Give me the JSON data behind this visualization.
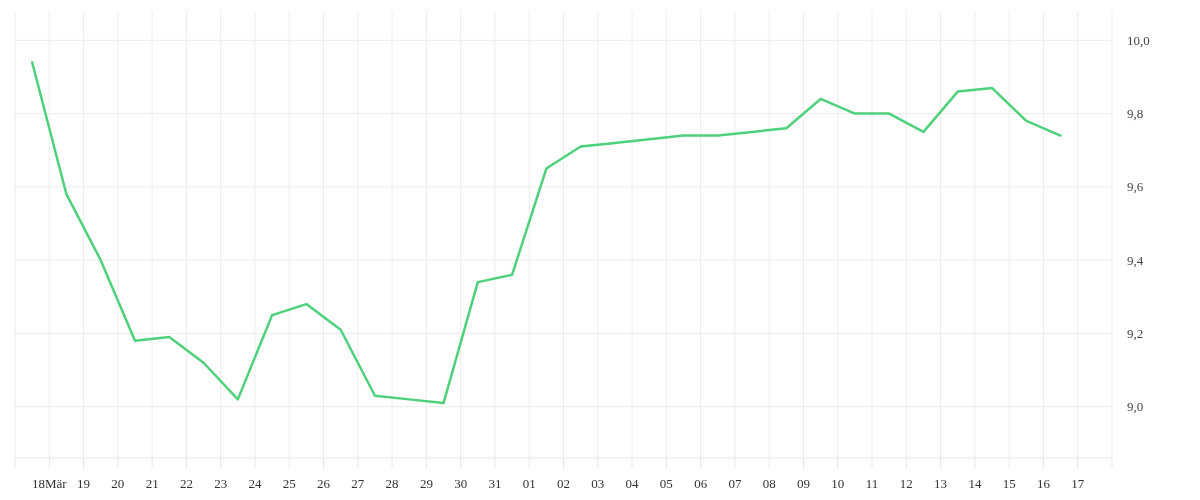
{
  "chart_data": {
    "type": "line",
    "x": [
      "--03-17T12:00",
      "--03-18T12:00",
      "--03-19T12:00",
      "--03-20T12:00",
      "--03-21T12:00",
      "--03-22T12:00",
      "--03-23T12:00",
      "--03-24T12:00",
      "--03-25T12:00",
      "--03-26T12:00",
      "--03-27T12:00",
      "--03-28T12:00",
      "--03-29T12:00",
      "--03-30T12:00",
      "--03-31T12:00",
      "--04-01T12:00",
      "--04-02T12:00",
      "--04-03T12:00",
      "--04-04T12:00",
      "--04-05T12:00",
      "--04-06T12:00",
      "--04-07T12:00",
      "--04-08T12:00",
      "--04-09T12:00",
      "--04-10T12:00",
      "--04-11T12:00",
      "--04-12T12:00",
      "--04-13T12:00",
      "--04-14T12:00",
      "--04-15T12:00",
      "--04-16T12:00"
    ],
    "series": [
      {
        "color": "#4ed17a",
        "values": [
          9.94,
          9.58,
          9.4,
          9.18,
          9.19,
          9.12,
          9.02,
          9.25,
          9.28,
          9.21,
          9.03,
          9.02,
          9.01,
          9.34,
          9.36,
          9.65,
          9.71,
          9.72,
          9.73,
          9.74,
          9.74,
          9.75,
          9.76,
          9.84,
          9.8,
          9.8,
          9.75,
          9.86,
          9.87,
          9.78,
          9.74
        ]
      }
    ],
    "xlim": [
      "--03-17",
      "--04-18"
    ],
    "xticks": [
      {
        "value": "--03-17",
        "label": null
      },
      {
        "value": "--03-18",
        "label": "18Mär"
      },
      {
        "value": "--03-19",
        "label": "19"
      },
      {
        "value": "--03-20",
        "label": "20"
      },
      {
        "value": "--03-21",
        "label": "21"
      },
      {
        "value": "--03-22",
        "label": "22"
      },
      {
        "value": "--03-23",
        "label": "23"
      },
      {
        "value": "--03-24",
        "label": "24"
      },
      {
        "value": "--03-25",
        "label": "25"
      },
      {
        "value": "--03-26",
        "label": "26"
      },
      {
        "value": "--03-27",
        "label": "27"
      },
      {
        "value": "--03-28",
        "label": "28"
      },
      {
        "value": "--03-29",
        "label": "29"
      },
      {
        "value": "--03-30",
        "label": "30"
      },
      {
        "value": "--03-31",
        "label": "31"
      },
      {
        "value": "--04-01",
        "label": "01"
      },
      {
        "value": "--04-02",
        "label": "02"
      },
      {
        "value": "--04-03",
        "label": "03"
      },
      {
        "value": "--04-04",
        "label": "04"
      },
      {
        "value": "--04-05",
        "label": "05"
      },
      {
        "value": "--04-06",
        "label": "06"
      },
      {
        "value": "--04-07",
        "label": "07"
      },
      {
        "value": "--04-08",
        "label": "08"
      },
      {
        "value": "--04-09",
        "label": "09"
      },
      {
        "value": "--04-10",
        "label": "10"
      },
      {
        "value": "--04-11",
        "label": "11"
      },
      {
        "value": "--04-12",
        "label": "12"
      },
      {
        "value": "--04-13",
        "label": "13"
      },
      {
        "value": "--04-14",
        "label": "14"
      },
      {
        "value": "--04-15",
        "label": "15"
      },
      {
        "value": "--04-16",
        "label": "16"
      },
      {
        "value": "--04-17",
        "label": "17"
      },
      {
        "value": "--04-18",
        "label": null
      }
    ],
    "ylim": [
      8.86,
      10.08
    ],
    "yticks": [
      {
        "value": 9.0,
        "label": "9,0"
      },
      {
        "value": 9.2,
        "label": "9,2"
      },
      {
        "value": 9.4,
        "label": "9,4"
      },
      {
        "value": 9.6,
        "label": "9,6"
      },
      {
        "value": 9.8,
        "label": "9,8"
      },
      {
        "value": 10.0,
        "label": "10,0"
      }
    ],
    "grid": true
  }
}
